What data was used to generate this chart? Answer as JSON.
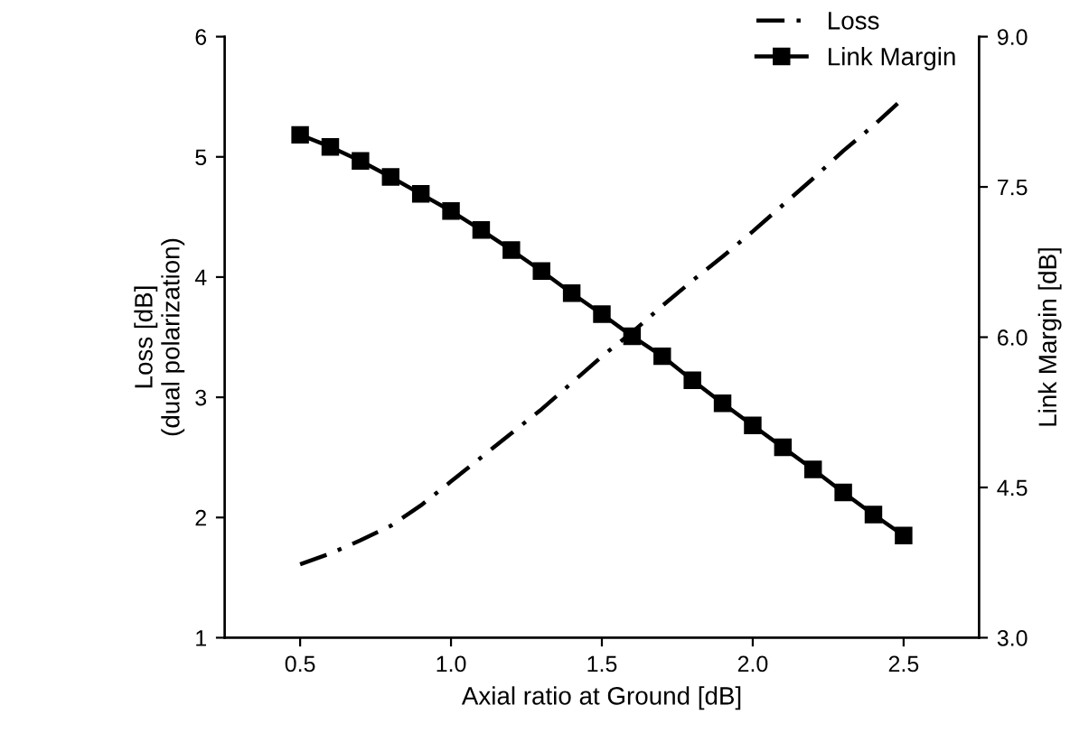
{
  "chart_data": {
    "type": "line",
    "xlabel": "Axial ratio at Ground [dB]",
    "ylabel": "Loss [dB]\n(dual polarization)",
    "y2label": "Link Margin [dB]",
    "x": [
      0.5,
      0.6,
      0.7,
      0.8,
      0.9,
      1.0,
      1.1,
      1.2,
      1.3,
      1.4,
      1.5,
      1.6,
      1.7,
      1.8,
      1.9,
      2.0,
      2.1,
      2.2,
      2.3,
      2.4,
      2.5
    ],
    "series": [
      {
        "name": "Loss",
        "color": "#000000",
        "marker": "none",
        "line_style": "dashed",
        "values": [
          1.61,
          1.7,
          1.81,
          1.93,
          2.1,
          2.3,
          2.5,
          2.7,
          2.9,
          3.12,
          3.34,
          3.54,
          3.76,
          3.97,
          4.17,
          4.38,
          4.6,
          4.82,
          5.05,
          5.26,
          5.49
        ]
      },
      {
        "name": "Link Margin",
        "color": "#000000",
        "marker": "square",
        "line_style": "solid",
        "axis": "y2",
        "values": [
          8.02,
          7.9,
          7.76,
          7.6,
          7.43,
          7.26,
          7.07,
          6.87,
          6.66,
          6.44,
          6.23,
          6.01,
          5.81,
          5.57,
          5.34,
          5.12,
          4.9,
          4.68,
          4.45,
          4.23,
          4.02
        ]
      }
    ],
    "xlim": [
      0.25,
      2.75
    ],
    "xticks": [
      {
        "value": 0.5,
        "label": "0.5"
      },
      {
        "value": 1.0,
        "label": "1.0"
      },
      {
        "value": 1.5,
        "label": "1.5"
      },
      {
        "value": 2.0,
        "label": "2.0"
      },
      {
        "value": 2.5,
        "label": "2.5"
      }
    ],
    "ylim": [
      1,
      6
    ],
    "yticks": [
      1,
      2,
      3,
      4,
      5,
      6
    ],
    "y2lim": [
      3,
      9
    ],
    "y2ticks": [
      {
        "value": 3,
        "label": "3.0"
      },
      {
        "value": 4.5,
        "label": "4.5"
      },
      {
        "value": 6,
        "label": "6.0"
      },
      {
        "value": 7.5,
        "label": "7.5"
      },
      {
        "value": 9,
        "label": "9.0"
      }
    ],
    "grid": false,
    "legend": "top right"
  }
}
